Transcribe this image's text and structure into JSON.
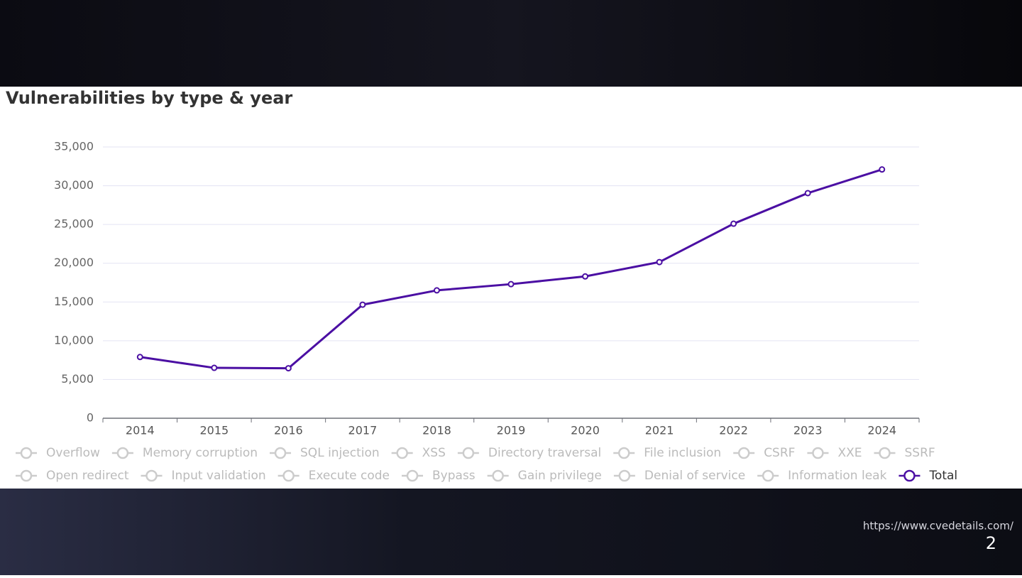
{
  "chart_data": {
    "type": "line",
    "title": "Vulnerabilities by type & year",
    "categories": [
      "2014",
      "2015",
      "2016",
      "2017",
      "2018",
      "2019",
      "2020",
      "2021",
      "2022",
      "2023",
      "2024"
    ],
    "series": [
      {
        "name": "Total",
        "color": "#4b0fa3",
        "values": [
          7900,
          6500,
          6450,
          14650,
          16500,
          17300,
          18300,
          20150,
          25100,
          29050,
          32100
        ]
      }
    ],
    "hidden_series": [
      "Overflow",
      "Memory corruption",
      "SQL injection",
      "XSS",
      "Directory traversal",
      "File inclusion",
      "CSRF",
      "XXE",
      "SSRF",
      "Open redirect",
      "Input validation",
      "Execute code",
      "Bypass",
      "Gain privilege",
      "Denial of service",
      "Information leak"
    ],
    "ylim": [
      0,
      35000
    ],
    "yticks": [
      0,
      {
        "value": 5000,
        "label": "5,000"
      },
      {
        "value": 10000,
        "label": "10,000"
      },
      {
        "value": 15000,
        "label": "15,000"
      },
      {
        "value": 20000,
        "label": "20,000"
      },
      {
        "value": 25000,
        "label": "25,000"
      },
      {
        "value": 30000,
        "label": "30,000"
      },
      {
        "value": 35000,
        "label": "35,000"
      }
    ],
    "grid": true
  },
  "footer": {
    "source": "https://www.cvedetails.com/",
    "page_number": 2
  }
}
